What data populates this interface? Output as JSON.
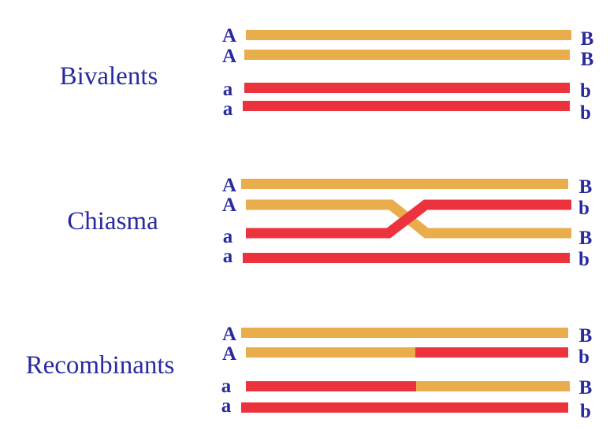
{
  "colors": {
    "gold": "#e9ad4c",
    "red": "#ec333d",
    "text": "#2a2aa0"
  },
  "panels": [
    {
      "title": "Bivalents",
      "left_labels": [
        "A",
        "A",
        "a",
        "a"
      ],
      "right_labels": [
        "B",
        "B",
        "b",
        "b"
      ]
    },
    {
      "title": "Chiasma",
      "left_labels": [
        "A",
        "A",
        "a",
        "a"
      ],
      "right_labels": [
        "B",
        "b",
        "B",
        "b"
      ]
    },
    {
      "title": "Recombinants",
      "left_labels": [
        "A",
        "A",
        "a",
        "a"
      ],
      "right_labels": [
        "B",
        "b",
        "B",
        "b"
      ]
    }
  ]
}
